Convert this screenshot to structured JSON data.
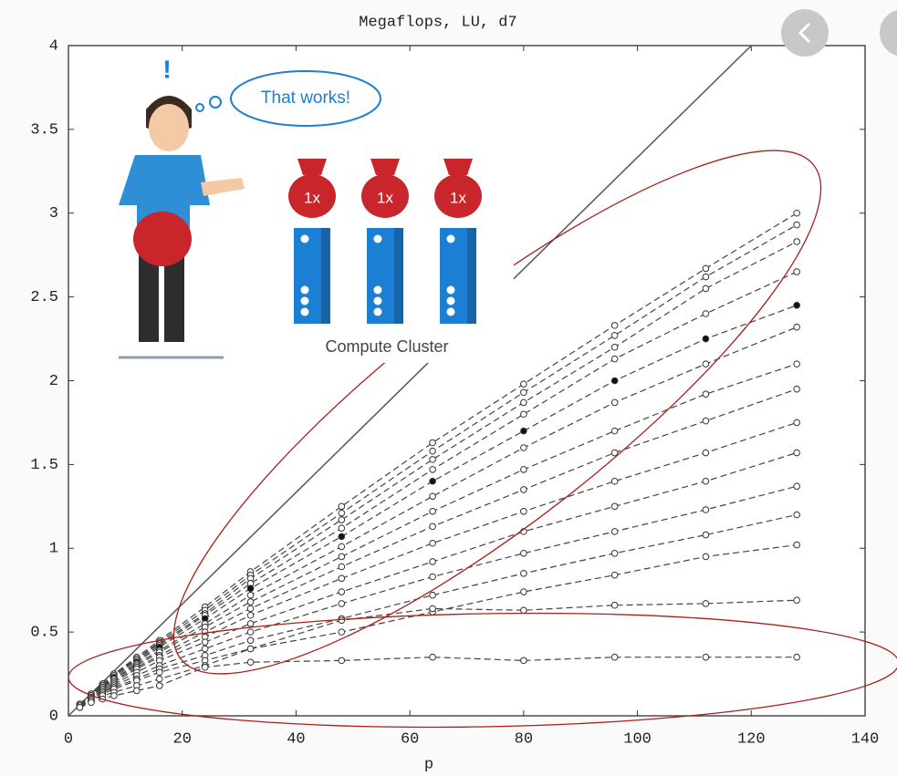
{
  "chart_data": {
    "type": "line",
    "title": "Megaflops, LU, d7",
    "x_label": "p",
    "x": [
      2,
      4,
      6,
      8,
      12,
      16,
      24,
      32,
      48,
      64,
      80,
      96,
      112,
      128
    ],
    "series": [
      {
        "color": "#444444",
        "values": [
          0.07,
          0.13,
          0.19,
          0.25,
          0.35,
          0.45,
          0.65,
          0.86,
          1.25,
          1.63,
          1.98,
          2.33,
          2.67,
          3.0
        ]
      },
      {
        "color": "#444444",
        "values": [
          0.07,
          0.13,
          0.19,
          0.25,
          0.34,
          0.44,
          0.63,
          0.84,
          1.21,
          1.58,
          1.93,
          2.27,
          2.62,
          2.93
        ]
      },
      {
        "color": "#444444",
        "values": [
          0.07,
          0.13,
          0.19,
          0.24,
          0.34,
          0.43,
          0.61,
          0.82,
          1.17,
          1.53,
          1.87,
          2.2,
          2.55,
          2.83
        ]
      },
      {
        "color": "#444444",
        "values": [
          0.07,
          0.13,
          0.18,
          0.24,
          0.33,
          0.42,
          0.6,
          0.79,
          1.12,
          1.47,
          1.8,
          2.13,
          2.4,
          2.65
        ]
      },
      {
        "color": "#444444",
        "filled": true,
        "values": [
          0.07,
          0.12,
          0.18,
          0.23,
          0.32,
          0.41,
          0.58,
          0.76,
          1.07,
          1.4,
          1.7,
          2.0,
          2.25,
          2.45
        ]
      },
      {
        "color": "#444444",
        "values": [
          0.07,
          0.12,
          0.18,
          0.22,
          0.31,
          0.39,
          0.55,
          0.72,
          1.01,
          1.31,
          1.6,
          1.87,
          2.1,
          2.32
        ]
      },
      {
        "color": "#444444",
        "values": [
          0.07,
          0.12,
          0.17,
          0.22,
          0.3,
          0.38,
          0.53,
          0.68,
          0.95,
          1.22,
          1.47,
          1.7,
          1.92,
          2.1
        ]
      },
      {
        "color": "#444444",
        "values": [
          0.07,
          0.12,
          0.17,
          0.21,
          0.29,
          0.36,
          0.5,
          0.64,
          0.89,
          1.13,
          1.35,
          1.57,
          1.76,
          1.95
        ]
      },
      {
        "color": "#444444",
        "values": [
          0.07,
          0.11,
          0.16,
          0.2,
          0.28,
          0.35,
          0.47,
          0.6,
          0.82,
          1.03,
          1.22,
          1.4,
          1.57,
          1.75
        ]
      },
      {
        "color": "#444444",
        "values": [
          0.06,
          0.11,
          0.15,
          0.19,
          0.26,
          0.33,
          0.44,
          0.55,
          0.74,
          0.92,
          1.1,
          1.25,
          1.4,
          1.57
        ]
      },
      {
        "color": "#444444",
        "values": [
          0.06,
          0.1,
          0.14,
          0.18,
          0.24,
          0.3,
          0.4,
          0.5,
          0.67,
          0.83,
          0.97,
          1.1,
          1.23,
          1.37
        ]
      },
      {
        "color": "#444444",
        "values": [
          0.06,
          0.1,
          0.14,
          0.17,
          0.22,
          0.28,
          0.36,
          0.45,
          0.58,
          0.72,
          0.85,
          0.97,
          1.08,
          1.2
        ]
      },
      {
        "color": "#444444",
        "values": [
          0.06,
          0.09,
          0.13,
          0.16,
          0.21,
          0.26,
          0.33,
          0.4,
          0.5,
          0.62,
          0.74,
          0.84,
          0.95,
          1.02
        ]
      },
      {
        "color": "#444444",
        "values": [
          0.05,
          0.09,
          0.12,
          0.14,
          0.18,
          0.22,
          0.3,
          0.4,
          0.57,
          0.64,
          0.63,
          0.66,
          0.67,
          0.69
        ]
      },
      {
        "color": "#444444",
        "values": [
          0.05,
          0.08,
          0.1,
          0.12,
          0.15,
          0.18,
          0.29,
          0.32,
          0.33,
          0.35,
          0.33,
          0.35,
          0.35,
          0.35
        ]
      }
    ],
    "reference_line": {
      "x": [
        0,
        120
      ],
      "y": [
        0,
        4
      ],
      "color": "#555555"
    },
    "xlim": [
      0,
      140
    ],
    "xticks": [
      0,
      20,
      40,
      60,
      80,
      100,
      120,
      140
    ],
    "ylim": [
      0,
      4
    ],
    "yticks": [
      0,
      0.5,
      1,
      1.5,
      2,
      2.5,
      3,
      3.5,
      4
    ]
  },
  "overlay": {
    "exclamation": "!",
    "thought": "That works!",
    "bags": [
      "1x",
      "1x",
      "1x"
    ],
    "caption": "Compute Cluster"
  }
}
